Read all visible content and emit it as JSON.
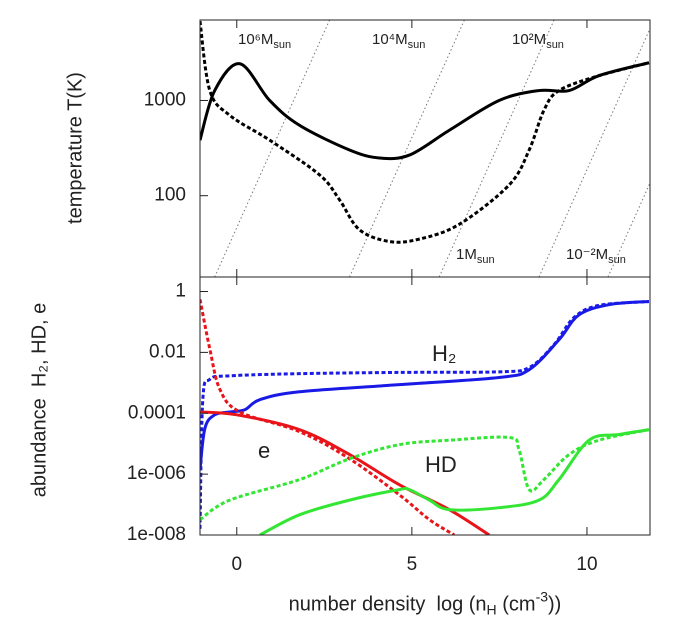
{
  "chart_data": [
    {
      "type": "line",
      "log_y": true,
      "ylabel": "temperature T(K)",
      "xlim": [
        -1.05,
        11.8
      ],
      "xticks": [
        0,
        5,
        10
      ],
      "ylim": [
        14,
        7000
      ],
      "yticks": [
        100,
        1000
      ],
      "series": [
        {
          "color": "#000000",
          "dash": false,
          "x": [
            -1.05,
            -0.63,
            0.09,
            0.94,
            1.79,
            3.22,
            4.07,
            4.93,
            6.07,
            7.49,
            8.63,
            9.49,
            10.34,
            11.77
          ],
          "values": [
            383,
            1271,
            2430,
            1000,
            549,
            302,
            249,
            267,
            487,
            1000,
            1271,
            1271,
            1820,
            2490
          ]
        },
        {
          "color": "#000000",
          "dash": true,
          "x": [
            -1.05,
            -0.77,
            -0.2,
            0.94,
            2.36,
            2.93,
            3.5,
            4.36,
            5.21,
            6.35,
            7.78,
            8.35,
            8.77,
            9.2,
            10.34,
            11.77
          ],
          "values": [
            6800,
            1271,
            698,
            383,
            166,
            91,
            44,
            33,
            35,
            50,
            130,
            302,
            787,
            1271,
            1820,
            2490
          ]
        }
      ],
      "guides": [
        {
          "label": "10⁶M",
          "label_sub": "sun",
          "x": [
            -0.63,
            2.65
          ],
          "values": [
            14,
            7000
          ]
        },
        {
          "label": "10⁴M",
          "label_sub": "sun",
          "x": [
            3.22,
            6.5
          ],
          "values": [
            14,
            7000
          ]
        },
        {
          "label": "10²M",
          "label_sub": "sun",
          "x": [
            5.78,
            9.06
          ],
          "values": [
            14,
            7000
          ]
        },
        {
          "label": "1M",
          "label_sub": "sun",
          "x": [
            8.63,
            11.91
          ],
          "values": [
            14,
            7000
          ]
        },
        {
          "label": "10⁻²M",
          "label_sub": "sun",
          "x": [
            10.6,
            13.88
          ],
          "values": [
            14,
            7000
          ]
        }
      ]
    },
    {
      "type": "line",
      "log_y": true,
      "ylabel": "abundance  H₂, HD, e",
      "xlabel_parts": [
        {
          "text": "number density  log (n"
        },
        {
          "text": "H",
          "shift": "sub"
        },
        {
          "text": " (cm"
        },
        {
          "text": "-3",
          "shift": "super"
        },
        {
          "text": "))"
        }
      ],
      "xlim": [
        -1.05,
        11.8
      ],
      "xticks": [
        0,
        5,
        10
      ],
      "ylim": [
        1e-08,
        3
      ],
      "yticks": [
        {
          "value": 1,
          "label": "1"
        },
        {
          "value": 0.01,
          "label": "0.01"
        },
        {
          "value": 0.0001,
          "label": "0.0001"
        },
        {
          "value": 1e-06,
          "label": "1e-006"
        },
        {
          "value": 1e-08,
          "label": "1e-008"
        }
      ],
      "series": [
        {
          "name": "H₂",
          "color": "#1a1ae6",
          "dash": false,
          "x": [
            -1.05,
            -0.91,
            -0.63,
            -0.2,
            0.23,
            0.66,
            1.79,
            4.64,
            7.49,
            8.35,
            9.2,
            9.77,
            10.63,
            11.77
          ],
          "values": [
            1.4e-06,
            3.2e-05,
            8.9e-05,
            0.00011,
            0.00013,
            0.00028,
            0.00051,
            0.00087,
            0.0015,
            0.0027,
            0.026,
            0.17,
            0.37,
            0.47
          ]
        },
        {
          "color": "#1a1ae6",
          "dash": true,
          "x": [
            -1.05,
            -0.97,
            -0.77,
            -0.2,
            1.79,
            4.64,
            7.49,
            8.35,
            9.06,
            9.63,
            10.34,
            11.77
          ],
          "values": [
            1.6e-08,
            0.00028,
            0.0013,
            0.0017,
            0.002,
            0.0022,
            0.0023,
            0.0032,
            0.018,
            0.14,
            0.35,
            0.47
          ]
        },
        {
          "name": "e",
          "color": "#e8141a",
          "dash": false,
          "x": [
            -1.05,
            0,
            1.79,
            3.22,
            4.64,
            6.07,
            7.21
          ],
          "values": [
            0.00011,
            8.9e-05,
            2.9e-05,
            4.4e-06,
            4.5e-07,
            6.8e-08,
            1e-08
          ]
        },
        {
          "color": "#e8141a",
          "dash": true,
          "x": [
            -1.05,
            -0.77,
            -0.48,
            0.09,
            1.79,
            3.22,
            4.64,
            5.5,
            6.21
          ],
          "values": [
            0.55,
            0.013,
            0.0006,
            0.00011,
            2.5e-05,
            3.2e-06,
            2.1e-07,
            3.2e-08,
            1e-08
          ]
        },
        {
          "name": "HD",
          "color": "#33e633",
          "dash": false,
          "x": [
            0.66,
            1.79,
            3.22,
            4.64,
            4.93,
            5.5,
            6.07,
            7.49,
            8.63,
            9.2,
            10.06,
            10.91,
            11.77
          ],
          "values": [
            1e-08,
            4.6e-08,
            1.4e-07,
            3.1e-07,
            3.1e-07,
            1.4e-07,
            6.8e-08,
            7.9e-08,
            1.4e-07,
            6.6e-07,
            1.3e-05,
            2e-05,
            2.9e-05
          ]
        },
        {
          "color": "#33e633",
          "dash": true,
          "x": [
            -1.05,
            -0.2,
            1.79,
            3.22,
            4.64,
            6.07,
            7.78,
            8.06,
            8.35,
            8.77,
            9.49,
            10.34,
            11.77
          ],
          "values": [
            3.2e-08,
            1.4e-07,
            6.6e-07,
            3.2e-06,
            9.3e-06,
            1.3e-05,
            1.6e-05,
            6.3e-06,
            3.1e-07,
            6.6e-07,
            4.4e-06,
            1.3e-05,
            2.9e-05
          ]
        }
      ]
    }
  ]
}
